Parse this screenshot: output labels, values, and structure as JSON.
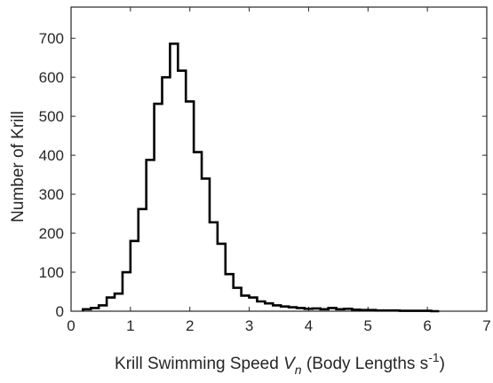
{
  "chart_data": {
    "type": "histogram",
    "xlabel": {
      "prefix": "Krill Swimming Speed ",
      "var": "V",
      "sub": "n",
      "middle": " (Body Lengths s",
      "sup": "-1",
      "suffix": ")"
    },
    "ylabel": "Number of Krill",
    "xlim": [
      0,
      7
    ],
    "ylim": [
      0,
      780
    ],
    "xticks": [
      0,
      1,
      2,
      3,
      4,
      5,
      6,
      7
    ],
    "yticks": [
      0,
      100,
      200,
      300,
      400,
      500,
      600,
      700
    ],
    "grid": false,
    "bin_width": 0.1333,
    "bin_edges_start": 0.2,
    "counts": [
      5,
      8,
      15,
      35,
      45,
      100,
      180,
      262,
      388,
      532,
      600,
      686,
      617,
      538,
      408,
      340,
      228,
      173,
      95,
      60,
      40,
      35,
      25,
      20,
      15,
      12,
      10,
      8,
      6,
      7,
      5,
      8,
      5,
      6,
      4,
      3,
      3,
      2,
      2,
      2,
      1,
      1,
      1,
      1,
      0
    ],
    "series": [
      {
        "color": "#000000"
      }
    ]
  }
}
